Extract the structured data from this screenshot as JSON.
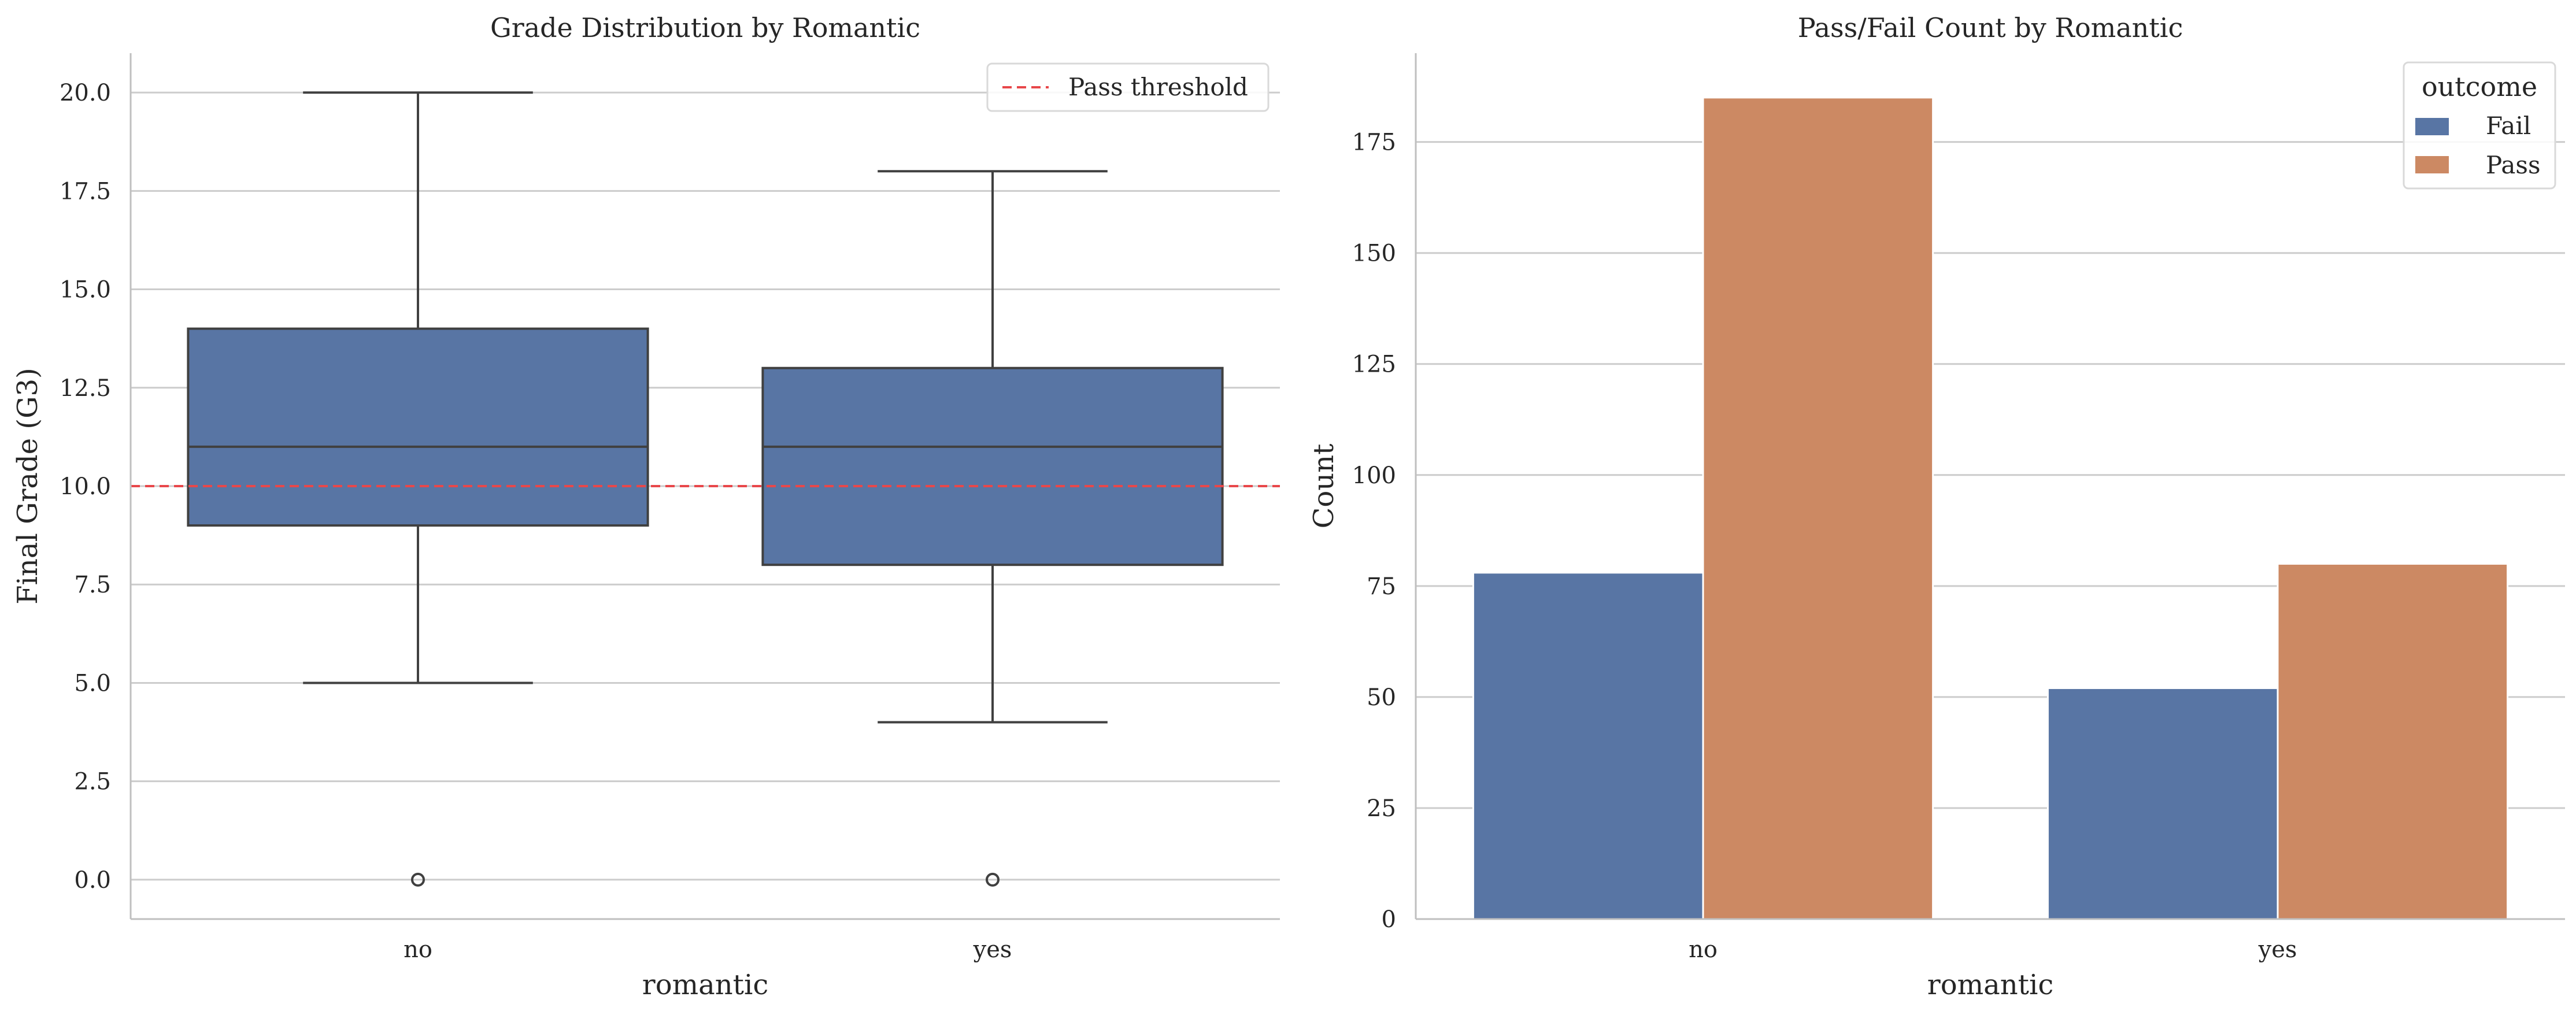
{
  "chart_data": [
    {
      "type": "box",
      "title": "Grade Distribution by Romantic",
      "xlabel": "romantic",
      "ylabel": "Final Grade (G3)",
      "categories": [
        "no",
        "yes"
      ],
      "ylim": [
        -1,
        21
      ],
      "yticks": [
        0.0,
        2.5,
        5.0,
        7.5,
        10.0,
        12.5,
        15.0,
        17.5,
        20.0
      ],
      "ytick_labels": [
        "0.0",
        "2.5",
        "5.0",
        "7.5",
        "10.0",
        "12.5",
        "15.0",
        "17.5",
        "20.0"
      ],
      "boxes": [
        {
          "category": "no",
          "whisker_low": 5,
          "q1": 9,
          "median": 11,
          "q3": 14,
          "whisker_high": 20,
          "outliers": [
            0
          ]
        },
        {
          "category": "yes",
          "whisker_low": 4,
          "q1": 8,
          "median": 11,
          "q3": 13,
          "whisker_high": 18,
          "outliers": [
            0
          ]
        }
      ],
      "box_color": "#5875a4",
      "reference_line": {
        "label": "Pass threshold",
        "y": 10,
        "color": "#e8474a",
        "style": "dashed"
      },
      "legend_position": "upper-right",
      "grid": "y"
    },
    {
      "type": "bar",
      "title": "Pass/Fail Count by Romantic",
      "xlabel": "romantic",
      "ylabel": "Count",
      "categories": [
        "no",
        "yes"
      ],
      "ylim": [
        0,
        195
      ],
      "yticks": [
        0,
        25,
        50,
        75,
        100,
        125,
        150,
        175
      ],
      "ytick_labels": [
        "0",
        "25",
        "50",
        "75",
        "100",
        "125",
        "150",
        "175"
      ],
      "series": [
        {
          "name": "Fail",
          "values": [
            78,
            52
          ],
          "color": "#5875a4"
        },
        {
          "name": "Pass",
          "values": [
            185,
            80
          ],
          "color": "#cc8963"
        }
      ],
      "legend_title": "outcome",
      "legend_position": "upper-right",
      "grid": "y"
    }
  ]
}
